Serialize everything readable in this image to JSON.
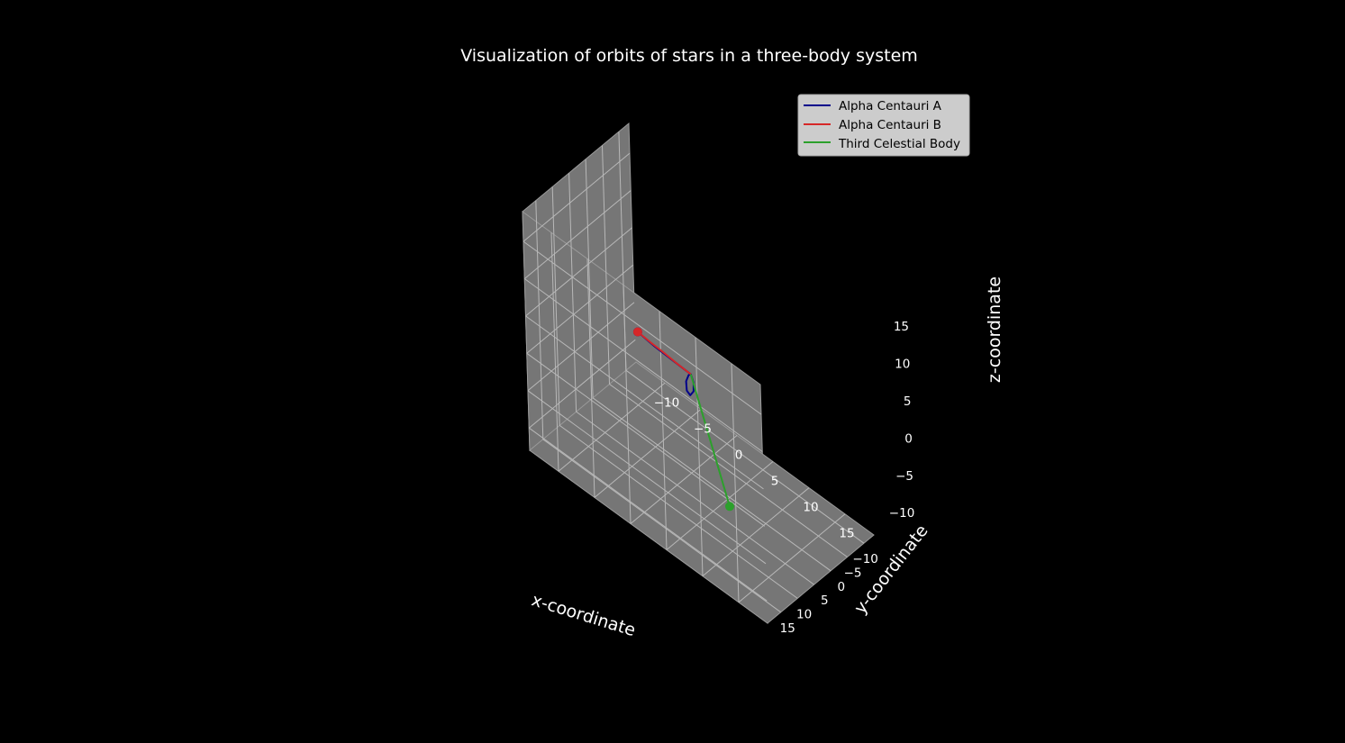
{
  "chart_data": {
    "type": "line3d",
    "title": "Visualization of orbits of stars in a three-body system",
    "xlabel": "x-coordinate",
    "ylabel": "y-coordinate",
    "zlabel": "z-coordinate",
    "xlim": [
      -14,
      19
    ],
    "ylim": [
      -13,
      19
    ],
    "zlim": [
      -13,
      19
    ],
    "xticks": [
      -10,
      -5,
      0,
      5,
      10,
      15
    ],
    "yticks": [
      -10,
      -5,
      0,
      5,
      10,
      15
    ],
    "zticks": [
      -10,
      -5,
      0,
      5,
      10,
      15
    ],
    "grid": true,
    "legend_position": "top-right",
    "background_color": "#000000",
    "pane_color": "#767676",
    "series": [
      {
        "name": "Alpha Centauri A",
        "color": "#00008b",
        "points": [
          [
            0.0,
            0.0,
            0.0
          ],
          [
            0.6,
            0.5,
            -0.5
          ],
          [
            0.9,
            1.2,
            -1.2
          ],
          [
            0.6,
            1.6,
            -1.8
          ],
          [
            0.0,
            1.3,
            -1.7
          ],
          [
            -0.4,
            0.6,
            -1.0
          ],
          [
            -0.3,
            0.0,
            -0.3
          ],
          [
            0.0,
            0.0,
            0.0
          ],
          [
            -3.0,
            -1.0,
            -0.6
          ],
          [
            -6.0,
            -2.0,
            -1.2
          ],
          [
            -8.8,
            -3.0,
            -1.6
          ]
        ],
        "end_marker": [
          -8.8,
          -3.0,
          -1.6
        ]
      },
      {
        "name": "Alpha Centauri B",
        "color": "#d62728",
        "points": [
          [
            0.0,
            0.0,
            0.0
          ],
          [
            -2.2,
            -0.7,
            -0.4
          ],
          [
            -4.4,
            -1.5,
            -0.8
          ],
          [
            -6.6,
            -2.2,
            -1.2
          ],
          [
            -8.8,
            -3.0,
            -1.6
          ]
        ],
        "end_marker": [
          -8.8,
          -3.0,
          -1.6
        ]
      },
      {
        "name": "Third Celestial Body",
        "color": "#2ca02c",
        "points": [
          [
            0.0,
            0.0,
            0.0
          ],
          [
            2.3,
            2.2,
            -2.0
          ],
          [
            4.6,
            4.4,
            -4.0
          ],
          [
            6.9,
            6.6,
            -6.0
          ],
          [
            9.2,
            8.8,
            -8.0
          ]
        ],
        "end_marker": [
          9.2,
          8.8,
          -8.0
        ]
      }
    ]
  }
}
